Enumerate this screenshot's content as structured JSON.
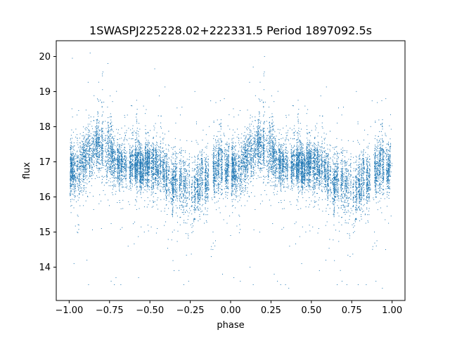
{
  "chart_data": {
    "type": "scatter",
    "title": "1SWASPJ225228.02+222331.5 Period 1897092.5s",
    "xlabel": "phase",
    "ylabel": "flux",
    "xlim": [
      -1.08,
      1.08
    ],
    "ylim": [
      13.05,
      20.45
    ],
    "x_ticks": [
      -1.0,
      -0.75,
      -0.5,
      -0.25,
      0.0,
      0.25,
      0.5,
      0.75,
      1.0
    ],
    "x_tick_labels": [
      "−1.00",
      "−0.75",
      "−0.50",
      "−0.25",
      "0.00",
      "0.25",
      "0.50",
      "0.75",
      "1.00"
    ],
    "y_ticks": [
      14,
      15,
      16,
      17,
      18,
      19,
      20
    ],
    "y_tick_labels": [
      "14",
      "15",
      "16",
      "17",
      "18",
      "19",
      "20"
    ],
    "grid": false,
    "marker_color": "#1f77b4",
    "phase_range": [
      -1.0,
      1.0
    ],
    "profile": {
      "phase": [
        0.0,
        0.04,
        0.08,
        0.1,
        0.12,
        0.14,
        0.16,
        0.18,
        0.2,
        0.22,
        0.25,
        0.28,
        0.32,
        0.36,
        0.4,
        0.44,
        0.48,
        0.52,
        0.56,
        0.6,
        0.64,
        0.68,
        0.72,
        0.76,
        0.8,
        0.84,
        0.88,
        0.92,
        0.96,
        1.0
      ],
      "flux": [
        16.8,
        16.7,
        16.9,
        17.05,
        17.2,
        17.3,
        17.4,
        17.45,
        17.4,
        17.3,
        17.1,
        17.0,
        16.9,
        16.9,
        16.9,
        16.85,
        16.85,
        16.9,
        16.8,
        16.7,
        16.5,
        16.35,
        16.3,
        16.35,
        16.4,
        16.5,
        16.6,
        16.75,
        16.85,
        16.8
      ],
      "scatter": [
        0.4,
        0.4,
        0.4,
        0.45,
        0.45,
        0.45,
        0.45,
        0.45,
        0.45,
        0.45,
        0.45,
        0.4,
        0.35,
        0.35,
        0.35,
        0.35,
        0.35,
        0.35,
        0.4,
        0.45,
        0.5,
        0.5,
        0.5,
        0.5,
        0.45,
        0.45,
        0.45,
        0.4,
        0.4,
        0.4
      ]
    },
    "outliers": [
      {
        "x": -0.98,
        "y": 19.95
      },
      {
        "x": -0.87,
        "y": 20.1
      },
      {
        "x": -0.76,
        "y": 19.8
      },
      {
        "x": -0.94,
        "y": 15.2
      },
      {
        "x": -0.95,
        "y": 15.0
      },
      {
        "x": -0.89,
        "y": 14.2
      },
      {
        "x": -0.97,
        "y": 14.1
      },
      {
        "x": -0.88,
        "y": 13.5
      },
      {
        "x": -0.74,
        "y": 13.6
      },
      {
        "x": -0.72,
        "y": 13.5
      },
      {
        "x": -0.68,
        "y": 13.5
      },
      {
        "x": -0.71,
        "y": 13.7
      },
      {
        "x": -0.57,
        "y": 13.7
      },
      {
        "x": -0.47,
        "y": 19.65
      },
      {
        "x": -0.35,
        "y": 13.9
      },
      {
        "x": -0.29,
        "y": 13.5
      },
      {
        "x": -0.26,
        "y": 13.6
      },
      {
        "x": -0.05,
        "y": 13.8
      },
      {
        "x": -0.11,
        "y": 14.5
      },
      {
        "x": -0.12,
        "y": 14.3
      },
      {
        "x": 0.02,
        "y": 13.7
      },
      {
        "x": 0.06,
        "y": 13.6
      },
      {
        "x": 0.14,
        "y": 19.7
      },
      {
        "x": 0.21,
        "y": 20.0
      },
      {
        "x": 0.12,
        "y": 14.0
      },
      {
        "x": 0.14,
        "y": 13.5
      },
      {
        "x": 0.27,
        "y": 13.8
      },
      {
        "x": 0.29,
        "y": 13.6
      },
      {
        "x": 0.31,
        "y": 13.5
      },
      {
        "x": 0.34,
        "y": 13.5
      },
      {
        "x": 0.36,
        "y": 13.4
      },
      {
        "x": 0.44,
        "y": 14.1
      },
      {
        "x": 0.55,
        "y": 13.9
      },
      {
        "x": 0.59,
        "y": 14.2
      },
      {
        "x": 0.66,
        "y": 13.5
      },
      {
        "x": 0.69,
        "y": 13.6
      },
      {
        "x": 0.72,
        "y": 13.5
      },
      {
        "x": 0.74,
        "y": 14.3
      },
      {
        "x": 0.79,
        "y": 13.5
      },
      {
        "x": 0.84,
        "y": 13.5
      },
      {
        "x": 0.9,
        "y": 13.6
      },
      {
        "x": 0.94,
        "y": 13.4
      },
      {
        "x": 0.96,
        "y": 14.5
      },
      {
        "x": 0.18,
        "y": 15.0
      },
      {
        "x": -0.8,
        "y": 15.1
      },
      {
        "x": -0.36,
        "y": 15.0
      },
      {
        "x": 0.64,
        "y": 15.2
      },
      {
        "x": 0.0,
        "y": 14.9
      }
    ]
  }
}
